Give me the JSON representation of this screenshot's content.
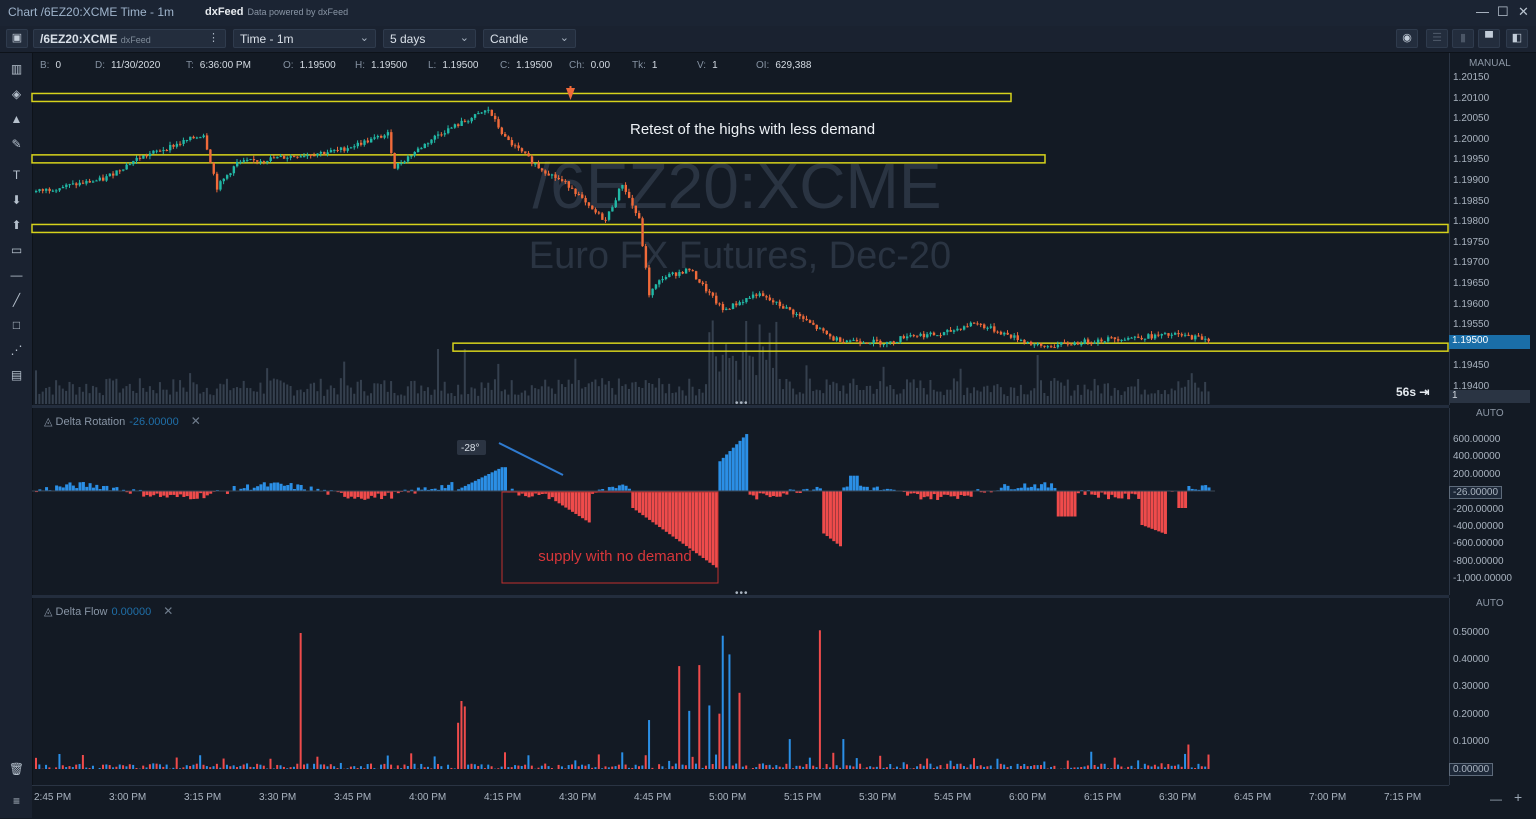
{
  "window": {
    "title": "Chart /6EZ20:XCME Time - 1m",
    "brand": "dxFeed",
    "brand_sub": "Data powered by dxFeed",
    "controls": [
      "—",
      "☐",
      "✕"
    ]
  },
  "toolbar": {
    "symbol": "/6EZ20:XCME",
    "symbol_source": "dxFeed",
    "timeframe": "Time - 1m",
    "range": "5 days",
    "chart_type": "Candle"
  },
  "info": [
    {
      "label": "B:",
      "value": "0"
    },
    {
      "label": "D:",
      "value": "11/30/2020"
    },
    {
      "label": "T:",
      "value": "6:36:00 PM"
    },
    {
      "label": "O:",
      "value": "1.19500"
    },
    {
      "label": "H:",
      "value": "1.19500"
    },
    {
      "label": "L:",
      "value": "1.19500"
    },
    {
      "label": "C:",
      "value": "1.19500"
    },
    {
      "label": "Ch:",
      "value": "0.00"
    },
    {
      "label": "Tk:",
      "value": "1"
    },
    {
      "label": "V:",
      "value": "1"
    },
    {
      "label": "OI:",
      "value": "629,388"
    }
  ],
  "watermark": {
    "symbol": "/6EZ20:XCME",
    "name": "Euro FX Futures, Dec-20"
  },
  "annotations": {
    "retest": "Retest of the highs with less demand",
    "supply": "supply with no demand",
    "angle": "-28°"
  },
  "main_pane": {
    "scale_mode": "MANUAL",
    "prices": [
      "1.20150",
      "1.20100",
      "1.20050",
      "1.20000",
      "1.19950",
      "1.19900",
      "1.19850",
      "1.19800",
      "1.19750",
      "1.19700",
      "1.19650",
      "1.19600",
      "1.19550",
      "1.19500",
      "1.19450",
      "1.19400"
    ],
    "current_price": "1.19500",
    "countdown": "56s",
    "volume_label": "1",
    "levels": [
      1.201,
      1.1995,
      1.1978,
      1.1949
    ]
  },
  "delta_rotation": {
    "title": "Delta Rotation",
    "value": "-26.00000",
    "scale_mode": "AUTO",
    "scale": [
      "600.00000",
      "400.00000",
      "200.00000",
      "-26.00000",
      "-200.00000",
      "-400.00000",
      "-600.00000",
      "-800.00000",
      "-1,000.00000"
    ]
  },
  "delta_flow": {
    "title": "Delta Flow",
    "value": "0.00000",
    "scale_mode": "AUTO",
    "scale": [
      "0.50000",
      "0.40000",
      "0.30000",
      "0.20000",
      "0.10000",
      "0.00000"
    ]
  },
  "time_axis": [
    "2:45 PM",
    "3:00 PM",
    "3:15 PM",
    "3:30 PM",
    "3:45 PM",
    "4:00 PM",
    "4:15 PM",
    "4:30 PM",
    "4:45 PM",
    "5:00 PM",
    "5:15 PM",
    "5:30 PM",
    "5:45 PM",
    "6:00 PM",
    "6:15 PM",
    "6:30 PM",
    "6:45 PM",
    "7:00 PM",
    "7:15 PM"
  ],
  "colors": {
    "up": "#21b8a6",
    "down": "#f06a3a",
    "level": "#d6d21c",
    "pos": "#2b8fe6",
    "neg": "#ef4b4b"
  }
}
